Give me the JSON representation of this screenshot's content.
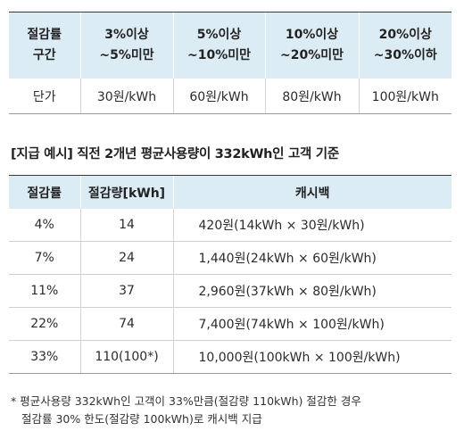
{
  "rate_table": {
    "headers": [
      {
        "line1": "절감률",
        "line2": "구간"
      },
      {
        "line1": "3%이상",
        "line2": "~5%미만"
      },
      {
        "line1": "5%이상",
        "line2": "~10%미만"
      },
      {
        "line1": "10%이상",
        "line2": "~20%미만"
      },
      {
        "line1": "20%이상",
        "line2": "~30%이하"
      }
    ],
    "row": [
      "단가",
      "30원/kWh",
      "60원/kWh",
      "80원/kWh",
      "100원/kWh"
    ]
  },
  "example_title": "[지급 예시] 직전 2개년 평균사용량이 332kWh인 고객 기준",
  "cashback_table": {
    "headers": [
      "절감률",
      "절감량[kWh]",
      "캐시백"
    ],
    "rows": [
      [
        "4%",
        "14",
        "420원(14kWh × 30원/kWh)"
      ],
      [
        "7%",
        "24",
        "1,440원(24kWh × 60원/kWh)"
      ],
      [
        "11%",
        "37",
        "2,960원(37kWh × 80원/kWh)"
      ],
      [
        "22%",
        "74",
        "7,400원(74kWh × 100원/kWh)"
      ],
      [
        "33%",
        "110(100*)",
        "10,000원(100kWh × 100원/kWh)"
      ]
    ]
  },
  "footnote": {
    "line1": "* 평균사용량 332kWh인 고객이 33%만큼(절감량 110kWh) 절감한 경우",
    "line2": "절감률 30% 한도(절감량 100kWh)로 캐시백 지급"
  }
}
